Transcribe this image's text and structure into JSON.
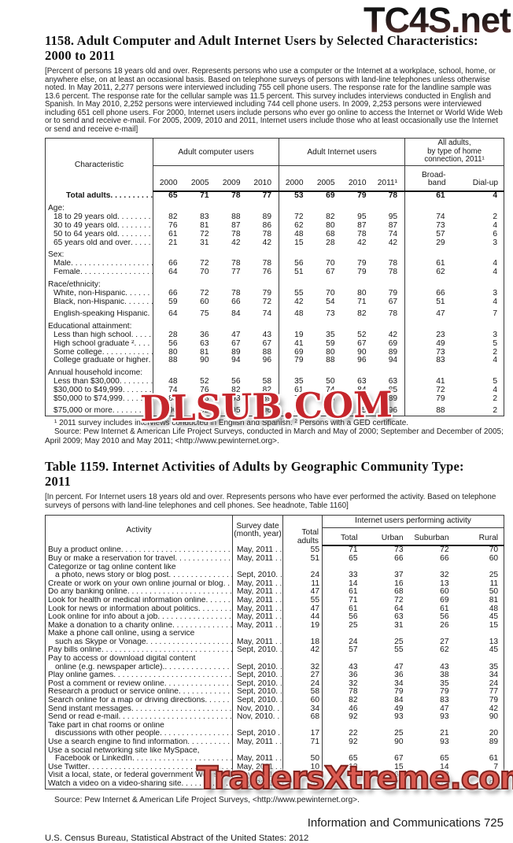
{
  "watermarks": {
    "top": "TC4S.net",
    "middle": "DLSUB.COM",
    "bottom": "TradersXtreme.com"
  },
  "table1158": {
    "title_lines": [
      "1158. Adult Computer and Adult Internet Users by Selected Characteristics:",
      "2000 to 2011"
    ],
    "headnote": "[Percent of persons 18 years old and over. Represents persons who use a computer or the Internet  at a workplace, school, home, or anywhere else, on at least an occasional basis. Based on telephone surveys of persons with land-line telephones unless otherwise noted. In May 2011, 2,277 persons were interviewed including 755 cell phone users. The response rate for the landline sample was 13.6 percent. The response rate for the cellular sample was 11.5 percent. This survey includes interviews conducted in English and Spanish. In May 2010, 2,252 persons were interviewed including 744 cell phone users. In 2009, 2,253 persons were interviewed including 651 cell phone users. For 2000, Internet users include persons who ever go online to access the Internet or World Wide Web or to send and receive e-mail. For 2005, 2009, 2010 and 2011, Internet users include those who at least occasionally use the Internet or send and receive e-mail]",
    "header": {
      "characteristic": "Characteristic",
      "groups": [
        {
          "label": "Adult computer users",
          "cols": [
            "2000",
            "2005",
            "2009",
            "2010"
          ]
        },
        {
          "label": "Adult Internet users",
          "cols": [
            "2000",
            "2005",
            "2010",
            "2011¹"
          ]
        },
        {
          "label_lines": [
            "All adults,",
            "by type of home",
            "connection, 2011¹"
          ],
          "cols_lines": [
            [
              "Broad-",
              "band"
            ],
            [
              "Dial-up"
            ]
          ]
        }
      ]
    },
    "rows": [
      {
        "type": "total",
        "label": "Total adults",
        "values": [
          "65",
          "71",
          "78",
          "77",
          "53",
          "69",
          "79",
          "78",
          "61",
          "4"
        ]
      },
      {
        "type": "section",
        "label": "Age:"
      },
      {
        "type": "item",
        "label": "18 to 29 years old",
        "values": [
          "82",
          "83",
          "88",
          "89",
          "72",
          "82",
          "95",
          "95",
          "74",
          "2"
        ]
      },
      {
        "type": "item",
        "label": "30 to 49 years old",
        "values": [
          "76",
          "81",
          "87",
          "86",
          "62",
          "80",
          "87",
          "87",
          "73",
          "4"
        ]
      },
      {
        "type": "item",
        "label": "50 to 64 years old",
        "values": [
          "61",
          "72",
          "78",
          "78",
          "48",
          "68",
          "78",
          "74",
          "57",
          "6"
        ]
      },
      {
        "type": "item",
        "label": "65 years old and over",
        "values": [
          "21",
          "31",
          "42",
          "42",
          "15",
          "28",
          "42",
          "42",
          "29",
          "3"
        ]
      },
      {
        "type": "section",
        "label": "Sex:"
      },
      {
        "type": "item",
        "label": "Male",
        "values": [
          "66",
          "72",
          "78",
          "78",
          "56",
          "70",
          "79",
          "78",
          "61",
          "4"
        ]
      },
      {
        "type": "item",
        "label": "Female",
        "values": [
          "64",
          "70",
          "77",
          "76",
          "51",
          "67",
          "79",
          "78",
          "62",
          "4"
        ]
      },
      {
        "type": "section",
        "label": "Race/ethnicity:"
      },
      {
        "type": "item",
        "label": "White, non-Hispanic",
        "values": [
          "66",
          "72",
          "78",
          "79",
          "55",
          "70",
          "80",
          "79",
          "66",
          "3"
        ]
      },
      {
        "type": "item",
        "label": "Black, non-Hispanic",
        "values": [
          "59",
          "60",
          "66",
          "72",
          "42",
          "54",
          "71",
          "67",
          "51",
          "4"
        ]
      },
      {
        "type": "item",
        "label": "English-speaking Hispanic",
        "space": true,
        "values": [
          "64",
          "75",
          "84",
          "74",
          "48",
          "73",
          "82",
          "78",
          "47",
          "7"
        ]
      },
      {
        "type": "section",
        "label": "Educational attainment:"
      },
      {
        "type": "item",
        "label": "Less than high school",
        "values": [
          "28",
          "36",
          "47",
          "43",
          "19",
          "35",
          "52",
          "42",
          "23",
          "3"
        ]
      },
      {
        "type": "item",
        "label": "High school graduate ²",
        "values": [
          "56",
          "63",
          "67",
          "67",
          "41",
          "59",
          "67",
          "69",
          "49",
          "5"
        ]
      },
      {
        "type": "item",
        "label": "Some college",
        "values": [
          "80",
          "81",
          "89",
          "88",
          "69",
          "80",
          "90",
          "89",
          "73",
          "2"
        ]
      },
      {
        "type": "item",
        "label": "College graduate or higher",
        "values": [
          "88",
          "90",
          "94",
          "96",
          "79",
          "88",
          "96",
          "94",
          "83",
          "4"
        ]
      },
      {
        "type": "section",
        "label": "Annual household income:"
      },
      {
        "type": "item",
        "label": "Less than $30,000",
        "values": [
          "48",
          "52",
          "56",
          "58",
          "35",
          "50",
          "63",
          "63",
          "41",
          "5"
        ]
      },
      {
        "type": "item",
        "label": "$30,000 to $49,999",
        "values": [
          "74",
          "76",
          "82",
          "82",
          "61",
          "74",
          "84",
          "85",
          "72",
          "4"
        ]
      },
      {
        "type": "item",
        "label": "$50,000 to $74,999",
        "values": [
          "85",
          "88",
          "93",
          "89",
          "74",
          "86",
          "89",
          "89",
          "79",
          "2"
        ]
      },
      {
        "type": "item",
        "label": "$75,000 or more",
        "space": true,
        "values": [
          "90",
          "92",
          "95",
          "96",
          "81",
          "91",
          "95",
          "96",
          "88",
          "2"
        ]
      }
    ],
    "footnote": "¹ 2011 survey includes interviews conducted in English and Spanish. ² Persons with a GED certificate.",
    "source": "Source:  Pew Internet & American Life Project Surveys, conducted in March and May of 2000; September and December of 2005; April 2009; May 2010 and May 2011; <http://www.pewinternet.org>."
  },
  "table1159": {
    "title_lines": [
      "Table 1159. Internet Activities of Adults by Geographic Community Type:",
      "2011"
    ],
    "headnote": "[In percent. For Internet users 18 years old and over. Represents persons who have ever performed the activity. Based on telephone surveys of persons with land-line telephones and cell phones. See headnote, Table 1160]",
    "header": {
      "activity": "Activity",
      "survey_date_lines": [
        "Survey date",
        "(month, year)"
      ],
      "total_adults_lines": [
        "Total",
        "adults"
      ],
      "group": "Internet users performing activity",
      "subcols": [
        "Total",
        "Urban",
        "Suburban",
        "Rural"
      ]
    },
    "rows": [
      {
        "label_lines": [
          "Buy a product online"
        ],
        "date": "May, 2011 . .",
        "values": [
          "55",
          "71",
          "73",
          "72",
          "70"
        ]
      },
      {
        "label_lines": [
          "Buy or make a reservation for travel"
        ],
        "date": "May, 2011 . .",
        "values": [
          "51",
          "65",
          "66",
          "66",
          "60"
        ]
      },
      {
        "label_lines": [
          "Categorize or tag online content like",
          "a photo, news story or blog post"
        ],
        "date": "Sept, 2010. .",
        "values": [
          "24",
          "33",
          "37",
          "32",
          "25"
        ]
      },
      {
        "label_lines": [
          "Create or work on your own online journal or blog"
        ],
        "date": "May, 2011 . .",
        "values": [
          "11",
          "14",
          "16",
          "13",
          "11"
        ]
      },
      {
        "label_lines": [
          "Do any banking online"
        ],
        "date": "May, 2011 . .",
        "values": [
          "47",
          "61",
          "68",
          "60",
          "50"
        ]
      },
      {
        "label_lines": [
          "Look for health or medical information online"
        ],
        "date": "May, 2011 . .",
        "values": [
          "55",
          "71",
          "72",
          "69",
          "81"
        ]
      },
      {
        "label_lines": [
          "Look for news or information about politics"
        ],
        "date": "May, 2011 . .",
        "values": [
          "47",
          "61",
          "64",
          "61",
          "48"
        ]
      },
      {
        "label_lines": [
          "Look online for info about a job"
        ],
        "date": "May, 2011 . .",
        "values": [
          "44",
          "56",
          "63",
          "56",
          "45"
        ]
      },
      {
        "label_lines": [
          "Make a donation to a charity online"
        ],
        "date": "May, 2011 . .",
        "values": [
          "19",
          "25",
          "31",
          "26",
          "15"
        ]
      },
      {
        "label_lines": [
          "Make a phone call online, using a service",
          "such as Skype or Vonage"
        ],
        "date": "May, 2011 . .",
        "values": [
          "18",
          "24",
          "25",
          "27",
          "13"
        ]
      },
      {
        "label_lines": [
          "Pay bills online"
        ],
        "date": "Sept, 2010. .",
        "values": [
          "42",
          "57",
          "55",
          "62",
          "45"
        ]
      },
      {
        "label_lines": [
          "Pay to access or download digital content",
          "online (e.g. newspaper article)."
        ],
        "date": "Sept, 2010. .",
        "values": [
          "32",
          "43",
          "47",
          "43",
          "35"
        ]
      },
      {
        "label_lines": [
          "Play online games"
        ],
        "date": "Sept, 2010. .",
        "values": [
          "27",
          "36",
          "36",
          "38",
          "34"
        ]
      },
      {
        "label_lines": [
          "Post a comment or review online"
        ],
        "date": "Sept, 2010. .",
        "values": [
          "24",
          "32",
          "34",
          "35",
          "24"
        ]
      },
      {
        "label_lines": [
          "Research a product or service online"
        ],
        "date": "Sept, 2010. .",
        "values": [
          "58",
          "78",
          "79",
          "79",
          "77"
        ]
      },
      {
        "label_lines": [
          "Search online for a map or driving directions"
        ],
        "date": "Sept, 2010. .",
        "values": [
          "60",
          "82",
          "84",
          "83",
          "79"
        ]
      },
      {
        "label_lines": [
          "Send instant messages"
        ],
        "date": "Nov, 2010. . .",
        "values": [
          "34",
          "46",
          "49",
          "47",
          "42"
        ]
      },
      {
        "label_lines": [
          "Send or read e-mail"
        ],
        "date": "Nov, 2010. . .",
        "values": [
          "68",
          "92",
          "93",
          "93",
          "90"
        ]
      },
      {
        "label_lines": [
          "Take part in chat rooms or online",
          "discussions with other people"
        ],
        "date": "Sept, 2010 . .",
        "values": [
          "17",
          "22",
          "25",
          "21",
          "20"
        ]
      },
      {
        "label_lines": [
          "Use a search engine to find information"
        ],
        "date": "May, 2011 . .",
        "values": [
          "71",
          "92",
          "90",
          "93",
          "89"
        ]
      },
      {
        "label_lines": [
          "Use a social networking site like MySpace,",
          "Facebook or LinkedIn"
        ],
        "date": "May, 2011 . .",
        "values": [
          "50",
          "65",
          "67",
          "65",
          "61"
        ]
      },
      {
        "label_lines": [
          "Use Twitter"
        ],
        "date": "May, 2011 . .",
        "values": [
          "10",
          "13",
          "15",
          "14",
          "7"
        ]
      },
      {
        "label_lines": [
          "Visit a local, state, or federal government Web site"
        ],
        "date": "May, 2011 . .",
        "values": [
          "52",
          "67",
          "68",
          "69",
          "61"
        ]
      },
      {
        "label_lines": [
          "Watch a video on a video-sharing site"
        ],
        "date": "May, 2011 . .",
        "values": [
          "55",
          "71",
          "72",
          "71",
          "68"
        ]
      }
    ],
    "source": "Source: Pew Internet & American Life Project Surveys, <http://www.pewinternet.org>."
  },
  "footer": {
    "right": "Information and Communications  725",
    "left": "U.S. Census Bureau, Statistical Abstract of the United States: 2012"
  }
}
